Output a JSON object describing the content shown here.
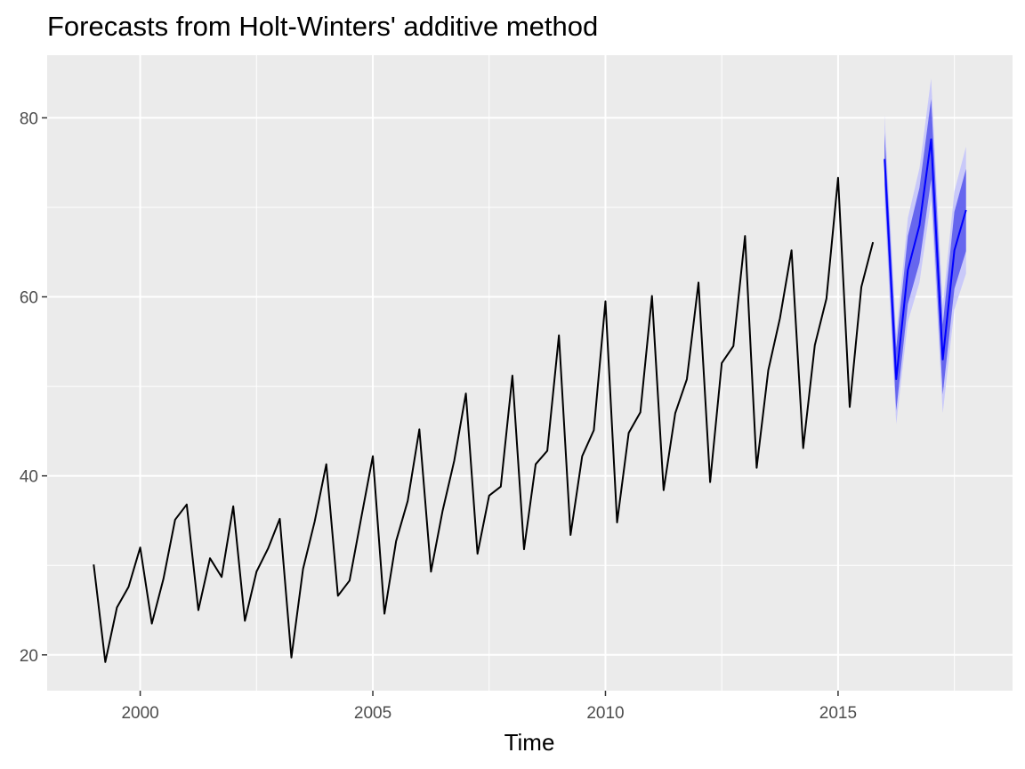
{
  "chart_data": {
    "type": "line",
    "title": "Forecasts from Holt-Winters' additive method",
    "xlabel": "Time",
    "ylabel": "",
    "xlim": [
      1998.0,
      2018.75
    ],
    "ylim": [
      16.0,
      87.0
    ],
    "x_ticks": [
      2000,
      2005,
      2010,
      2015
    ],
    "y_ticks": [
      20,
      40,
      60,
      80
    ],
    "grid": true,
    "legend": "none",
    "series": [
      {
        "name": "",
        "color": "#000000",
        "x": [
          1999.0,
          1999.25,
          1999.5,
          1999.75,
          2000.0,
          2000.25,
          2000.5,
          2000.75,
          2001.0,
          2001.25,
          2001.5,
          2001.75,
          2002.0,
          2002.25,
          2002.5,
          2002.75,
          2003.0,
          2003.25,
          2003.5,
          2003.75,
          2004.0,
          2004.25,
          2004.5,
          2004.75,
          2005.0,
          2005.25,
          2005.5,
          2005.75,
          2006.0,
          2006.25,
          2006.5,
          2006.75,
          2007.0,
          2007.25,
          2007.5,
          2007.75,
          2008.0,
          2008.25,
          2008.5,
          2008.75,
          2009.0,
          2009.25,
          2009.5,
          2009.75,
          2010.0,
          2010.25,
          2010.5,
          2010.75,
          2011.0,
          2011.25,
          2011.5,
          2011.75,
          2012.0,
          2012.25,
          2012.5,
          2012.75,
          2013.0,
          2013.25,
          2013.5,
          2013.75,
          2014.0,
          2014.25,
          2014.5,
          2014.75,
          2015.0,
          2015.25,
          2015.5,
          2015.75
        ],
        "values": [
          30.1,
          19.2,
          25.3,
          27.6,
          32.0,
          23.5,
          28.5,
          35.1,
          36.8,
          25.0,
          30.8,
          28.7,
          36.6,
          23.8,
          29.3,
          31.9,
          35.2,
          19.7,
          29.6,
          34.9,
          41.3,
          26.6,
          28.3,
          35.3,
          42.2,
          24.6,
          32.7,
          37.2,
          45.2,
          29.3,
          36.1,
          41.7,
          49.2,
          31.3,
          37.8,
          38.8,
          51.2,
          31.8,
          41.3,
          42.8,
          55.7,
          33.4,
          42.2,
          45.1,
          59.5,
          34.8,
          44.8,
          47.1,
          60.1,
          38.4,
          47.0,
          50.8,
          61.6,
          39.3,
          52.6,
          54.5,
          66.8,
          40.9,
          51.8,
          57.6,
          65.2,
          43.1,
          54.6,
          59.8,
          73.3,
          47.7,
          61.1,
          66.1
        ]
      },
      {
        "name": "",
        "color": "#0000ff",
        "x": [
          2016.0,
          2016.25,
          2016.5,
          2016.75,
          2017.0,
          2017.25,
          2017.5,
          2017.75
        ],
        "values": [
          75.4,
          50.8,
          63.0,
          68.0,
          77.6,
          53.0,
          65.2,
          69.7
        ],
        "lo80": [
          72.5,
          47.3,
          59.2,
          63.8,
          73.1,
          49.1,
          60.9,
          65.1
        ],
        "hi80": [
          78.3,
          54.3,
          66.8,
          72.2,
          82.1,
          56.9,
          69.5,
          74.3
        ],
        "lo95": [
          70.5,
          45.8,
          57.2,
          61.6,
          70.8,
          47.0,
          58.6,
          62.6
        ],
        "hi95": [
          80.3,
          55.8,
          68.8,
          74.4,
          84.4,
          59.0,
          71.8,
          76.8
        ],
        "band80_color": "#6666ee",
        "band95_color": "#c9c9f9"
      }
    ],
    "panel_color": "#ebebeb",
    "grid_color": "#ffffff"
  }
}
